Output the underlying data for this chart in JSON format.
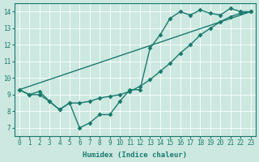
{
  "xlabel": "Humidex (Indice chaleur)",
  "bg_color": "#cce8e0",
  "grid_color": "#ffffff",
  "line_color": "#1a7a6e",
  "markersize": 3,
  "linewidth": 1.0,
  "xlim": [
    -0.5,
    23.5
  ],
  "ylim": [
    6.5,
    14.5
  ],
  "xticks": [
    0,
    1,
    2,
    3,
    4,
    5,
    6,
    7,
    8,
    9,
    10,
    11,
    12,
    13,
    14,
    15,
    16,
    17,
    18,
    19,
    20,
    21,
    22,
    23
  ],
  "yticks": [
    7,
    8,
    9,
    10,
    11,
    12,
    13,
    14
  ],
  "line1_x": [
    0,
    1,
    2,
    3,
    4,
    5,
    6,
    7,
    8,
    9,
    10,
    11,
    12,
    13,
    14,
    15,
    16,
    17,
    18,
    19,
    20,
    21,
    22,
    23
  ],
  "line1_y": [
    9.3,
    9.0,
    9.2,
    8.6,
    8.1,
    8.5,
    7.0,
    7.3,
    7.8,
    7.8,
    8.6,
    9.3,
    9.3,
    11.8,
    12.6,
    13.6,
    14.0,
    13.8,
    14.1,
    13.9,
    13.8,
    14.2,
    14.0,
    14.0
  ],
  "line2_x": [
    0,
    23
  ],
  "line2_y": [
    9.3,
    14.0
  ],
  "line3_x": [
    0,
    1,
    2,
    3,
    4,
    5,
    6,
    7,
    8,
    9,
    10,
    11,
    12,
    13,
    14,
    15,
    16,
    17,
    18,
    19,
    20,
    21,
    22,
    23
  ],
  "line3_y": [
    9.3,
    9.0,
    9.0,
    8.6,
    8.1,
    8.5,
    8.5,
    8.6,
    8.8,
    8.9,
    9.0,
    9.2,
    9.5,
    9.9,
    10.4,
    10.9,
    11.5,
    12.0,
    12.6,
    13.0,
    13.4,
    13.7,
    13.9,
    14.0
  ]
}
